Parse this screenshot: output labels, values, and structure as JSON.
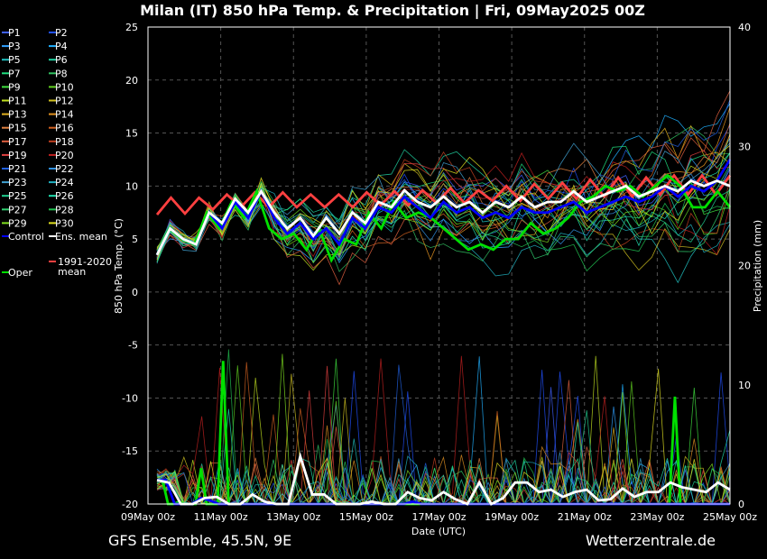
{
  "footer": {
    "left": "GFS Ensemble, 45.5N, 9E",
    "right": "Wetterzentrale.de"
  },
  "chart_data": {
    "type": "line",
    "title": "Milan  (IT)  850 hPa Temp. & Precipitation | Fri, 09May2025 00Z",
    "xlabel": "Date (UTC)",
    "ylabel": "850 hPa Temp. (°C)",
    "y2label": "Precipitation (mm)",
    "ylim": [
      -20,
      25
    ],
    "y2lim": [
      0,
      40
    ],
    "xlim": [
      "09May 00z",
      "25May 00z"
    ],
    "x_tick_labels": [
      "09May 00z",
      "11May 00z",
      "13May 00z",
      "15May 00z",
      "17May 00z",
      "19May 00z",
      "21May 00z",
      "23May 00z",
      "25May 00z"
    ],
    "y_ticks": [
      25,
      20,
      15,
      10,
      5,
      0,
      -5,
      -10,
      -15,
      -20
    ],
    "y2_ticks": [
      40,
      30,
      20,
      10,
      0
    ],
    "grid": true,
    "legend_position": "left-outside",
    "step_hours": 6,
    "series": [
      {
        "name": "Control",
        "color": "#0000ff",
        "temp": [
          3.5,
          6,
          5,
          4.5,
          7.5,
          6,
          8.5,
          7,
          9.5,
          7,
          5.5,
          6.5,
          5,
          6,
          4.5,
          7,
          6,
          8,
          7.5,
          9,
          8,
          7,
          8.5,
          7.5,
          8,
          7,
          7.5,
          7,
          8,
          7.5,
          7.5,
          8,
          8.5,
          7.5,
          8,
          8.5,
          9,
          8.5,
          9,
          10,
          9,
          10,
          9.5,
          10.5,
          12.5
        ],
        "precip": [
          2,
          2,
          0,
          0,
          0,
          0.5,
          0.3,
          0,
          0,
          0,
          0,
          0,
          0,
          0,
          0,
          0,
          0,
          0,
          0,
          0,
          0,
          0,
          0,
          0,
          0,
          0,
          0,
          0,
          0,
          0.2,
          0,
          0,
          0,
          0,
          0,
          0,
          0,
          0,
          0,
          0,
          0,
          0,
          0,
          0,
          0,
          0,
          0,
          0,
          0,
          0,
          0,
          0,
          0,
          0,
          0,
          0,
          0,
          0,
          0,
          0,
          0,
          0,
          0,
          0,
          0,
          0
        ]
      },
      {
        "name": "Ens. mean",
        "color": "#ffffff",
        "temp": [
          3.5,
          6,
          5,
          4.5,
          7.5,
          6.5,
          8.8,
          7.5,
          9.5,
          7.5,
          6,
          7,
          5.3,
          7,
          5.5,
          7.5,
          6.5,
          8.5,
          8,
          9.6,
          8.5,
          8,
          9,
          8,
          8.5,
          7.5,
          8.5,
          8,
          9,
          8,
          8.5,
          8.5,
          9.5,
          8.5,
          9,
          9.5,
          10,
          9,
          9.5,
          10,
          9.5,
          10.5,
          10,
          10.5,
          10
        ],
        "precip": [
          2,
          1.8,
          0,
          0,
          0.5,
          0.6,
          0,
          0,
          0.8,
          0.2,
          0,
          0,
          4,
          0.8,
          0.8,
          0,
          0,
          0,
          0.2,
          0,
          0,
          1,
          0.5,
          0.3,
          1,
          0.4,
          0,
          1.8,
          0,
          0.5,
          1.8,
          1.8,
          1,
          1.2,
          0.6,
          1,
          1.2,
          0.3,
          0.4,
          1.3,
          0.6,
          1,
          1,
          1.8,
          1.4,
          1.2,
          1,
          1.8,
          1.2
        ]
      },
      {
        "name": "1991-2020 mean",
        "color": "#ff4040",
        "temp": [
          7.3,
          8.9,
          7.4,
          8.9,
          7.8,
          9.2,
          8,
          9.4,
          8,
          9.4,
          8,
          9.2,
          8,
          9.2,
          8,
          9.4,
          8.2,
          9.5,
          8.2,
          9.6,
          8.4,
          9.8,
          8.4,
          9.6,
          8.6,
          10,
          8.6,
          10.2,
          8.8,
          10.3,
          8.8,
          10.6,
          9,
          10.8,
          9,
          10.8,
          9.2,
          11,
          9.2,
          11,
          9.2,
          11
        ],
        "precip": []
      },
      {
        "name": "Oper",
        "color": "#00e000",
        "temp": [
          3.5,
          6,
          5,
          4.5,
          7.5,
          6,
          8.5,
          7,
          9.5,
          6,
          5,
          5.5,
          4,
          6,
          3,
          5,
          4.5,
          7.5,
          6,
          8.5,
          7,
          7.5,
          7,
          6,
          5,
          4,
          4.5,
          4,
          5,
          5,
          6.5,
          5.5,
          6,
          7,
          8.5,
          9,
          10,
          9.5,
          10,
          9,
          10,
          11,
          10,
          8,
          8,
          9.5,
          8
        ],
        "precip": [
          2,
          2,
          0,
          0,
          0.2,
          0,
          0,
          0,
          3,
          0,
          0,
          0,
          12,
          0,
          0,
          0,
          0,
          0,
          0,
          0,
          0,
          0,
          0,
          0,
          0,
          0,
          0,
          0,
          0,
          0,
          0,
          0,
          0,
          0,
          0,
          0,
          0,
          0,
          0,
          0,
          0,
          0,
          0,
          0,
          0,
          0,
          0,
          0,
          0,
          0,
          0,
          0,
          0,
          0,
          0,
          0,
          0,
          0,
          0,
          0,
          0,
          0,
          0,
          0,
          0,
          0,
          0,
          0,
          0,
          0,
          0,
          0,
          0,
          0,
          0,
          0,
          0,
          0,
          0,
          0,
          0,
          0,
          0,
          0,
          0,
          0,
          0,
          0,
          0,
          0,
          0,
          0,
          0,
          0,
          9,
          0,
          0,
          0,
          0,
          0,
          0,
          0,
          0,
          0,
          0
        ]
      }
    ],
    "legend_entries": [
      {
        "name": "P1",
        "color": "#4060ff"
      },
      {
        "name": "P2",
        "color": "#2050ff"
      },
      {
        "name": "P3",
        "color": "#30a0ff"
      },
      {
        "name": "P4",
        "color": "#20b0ff"
      },
      {
        "name": "P5",
        "color": "#20c0c0"
      },
      {
        "name": "P6",
        "color": "#20d0a0"
      },
      {
        "name": "P7",
        "color": "#20e080"
      },
      {
        "name": "P8",
        "color": "#30c060"
      },
      {
        "name": "P9",
        "color": "#40e040"
      },
      {
        "name": "P10",
        "color": "#60d020"
      },
      {
        "name": "P11",
        "color": "#c0e020"
      },
      {
        "name": "P12",
        "color": "#d0c020"
      },
      {
        "name": "P13",
        "color": "#e0b020"
      },
      {
        "name": "P14",
        "color": "#e09020"
      },
      {
        "name": "P15",
        "color": "#e08040"
      },
      {
        "name": "P16",
        "color": "#d06020"
      },
      {
        "name": "P17",
        "color": "#e06040"
      },
      {
        "name": "P18",
        "color": "#c04020"
      },
      {
        "name": "P19",
        "color": "#e04040"
      },
      {
        "name": "P20",
        "color": "#c02020"
      },
      {
        "name": "P21",
        "color": "#2060e0"
      },
      {
        "name": "P22",
        "color": "#3090e0"
      },
      {
        "name": "P23",
        "color": "#40a0d0"
      },
      {
        "name": "P24",
        "color": "#20b0c0"
      },
      {
        "name": "P25",
        "color": "#20d090"
      },
      {
        "name": "P26",
        "color": "#20e0b0"
      },
      {
        "name": "P27",
        "color": "#30d070"
      },
      {
        "name": "P28",
        "color": "#20c050"
      },
      {
        "name": "P29",
        "color": "#80e020"
      },
      {
        "name": "P30",
        "color": "#e0e020"
      },
      {
        "name": "Control",
        "color": "#0000ff"
      },
      {
        "name": "Ens. mean",
        "color": "#ffffff"
      },
      {
        "name": "1991-2020 mean",
        "color": "#ff4040"
      },
      {
        "name": "Oper",
        "color": "#00e000"
      }
    ]
  }
}
